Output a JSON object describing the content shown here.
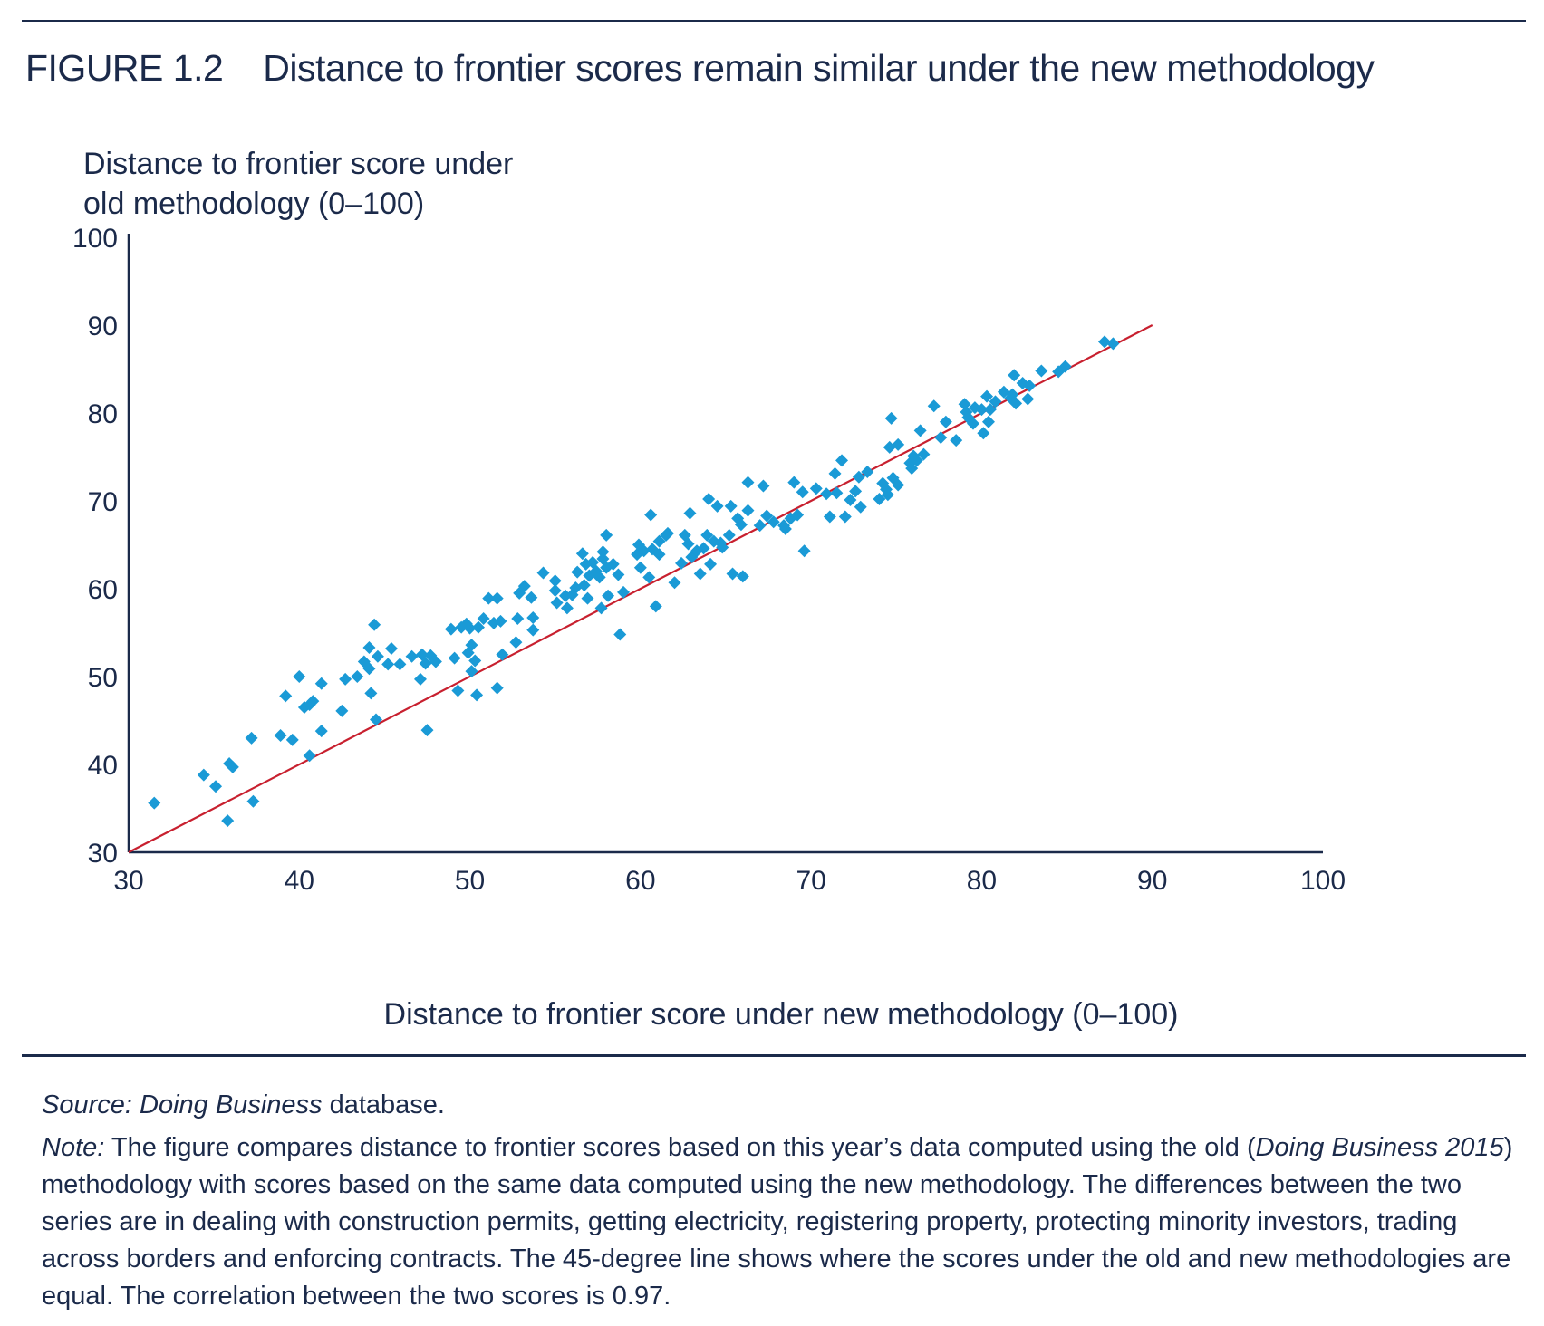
{
  "figure": {
    "label": "FIGURE 1.2",
    "title": "Distance to frontier scores remain similar under the new methodology"
  },
  "source": {
    "label": "Source:",
    "name": "Doing Business",
    "suffix": "database."
  },
  "note": {
    "label": "Note:",
    "p1": "The figure compares distance to frontier scores based on this year’s data computed using the old (",
    "italic": "Doing Business 2015",
    "p2": ") methodology with scores based on the same data computed using the new methodology. The differences between the two series are in dealing with construction permits, getting electricity, registering property, protecting minority investors, trading across borders and enforcing contracts. The 45-degree line shows where the scores under the old and new methodologies are equal. The correlation between the two scores is 0.97."
  },
  "colors": {
    "marker": "#1a9ad6",
    "line": "#c8202f",
    "axis": "#1b2a4a",
    "text": "#1b2a4a"
  },
  "chart_data": {
    "type": "scatter",
    "ylabel_line1": "Distance to frontier score under",
    "ylabel_line2": "old methodology (0–100)",
    "xlabel": "Distance to frontier score under new methodology (0–100)",
    "xlim": [
      30,
      100
    ],
    "ylim": [
      30,
      100
    ],
    "xticks": [
      30,
      40,
      50,
      60,
      70,
      80,
      90,
      100
    ],
    "yticks": [
      30,
      40,
      50,
      60,
      70,
      80,
      90,
      100
    ],
    "grid": false,
    "marker": "diamond",
    "reference_line": {
      "from": [
        30,
        30
      ],
      "to": [
        90,
        90
      ]
    },
    "points": [
      [
        31.5,
        35.6
      ],
      [
        34.4,
        38.8
      ],
      [
        35.1,
        37.5
      ],
      [
        35.9,
        40.1
      ],
      [
        36.1,
        39.7
      ],
      [
        35.8,
        33.6
      ],
      [
        37.3,
        35.8
      ],
      [
        37.2,
        43.0
      ],
      [
        38.9,
        43.3
      ],
      [
        39.6,
        42.8
      ],
      [
        39.2,
        47.8
      ],
      [
        40.0,
        50.0
      ],
      [
        40.3,
        46.5
      ],
      [
        40.8,
        47.2
      ],
      [
        40.6,
        46.8
      ],
      [
        40.6,
        41.0
      ],
      [
        41.3,
        43.8
      ],
      [
        41.3,
        49.2
      ],
      [
        42.5,
        46.1
      ],
      [
        42.7,
        49.7
      ],
      [
        43.4,
        50.0
      ],
      [
        43.8,
        51.7
      ],
      [
        44.1,
        53.3
      ],
      [
        44.1,
        50.9
      ],
      [
        44.2,
        48.1
      ],
      [
        44.4,
        55.9
      ],
      [
        44.6,
        52.3
      ],
      [
        44.5,
        45.1
      ],
      [
        45.2,
        51.4
      ],
      [
        45.4,
        53.2
      ],
      [
        45.9,
        51.4
      ],
      [
        46.6,
        52.3
      ],
      [
        47.1,
        49.7
      ],
      [
        47.4,
        51.5
      ],
      [
        47.2,
        52.5
      ],
      [
        47.7,
        52.4
      ],
      [
        48.0,
        51.7
      ],
      [
        47.5,
        43.9
      ],
      [
        48.9,
        55.4
      ],
      [
        49.1,
        52.1
      ],
      [
        49.3,
        48.4
      ],
      [
        49.5,
        55.6
      ],
      [
        49.8,
        56.0
      ],
      [
        50.0,
        55.5
      ],
      [
        50.1,
        53.6
      ],
      [
        49.9,
        52.7
      ],
      [
        50.5,
        55.6
      ],
      [
        50.3,
        51.8
      ],
      [
        50.1,
        50.6
      ],
      [
        50.4,
        47.9
      ],
      [
        50.8,
        56.6
      ],
      [
        51.1,
        58.9
      ],
      [
        51.4,
        56.1
      ],
      [
        51.6,
        58.9
      ],
      [
        51.8,
        56.3
      ],
      [
        51.6,
        48.7
      ],
      [
        51.9,
        52.5
      ],
      [
        52.7,
        53.9
      ],
      [
        52.8,
        56.6
      ],
      [
        52.9,
        59.5
      ],
      [
        53.2,
        60.3
      ],
      [
        53.6,
        59.0
      ],
      [
        53.7,
        56.7
      ],
      [
        53.7,
        55.3
      ],
      [
        54.3,
        61.8
      ],
      [
        55.0,
        59.8
      ],
      [
        55.0,
        60.9
      ],
      [
        55.1,
        58.4
      ],
      [
        55.6,
        59.2
      ],
      [
        55.7,
        57.8
      ],
      [
        56.0,
        59.3
      ],
      [
        56.2,
        60.1
      ],
      [
        56.3,
        61.9
      ],
      [
        56.6,
        64.0
      ],
      [
        56.8,
        62.8
      ],
      [
        56.7,
        60.4
      ],
      [
        56.9,
        58.9
      ],
      [
        57.2,
        63.0
      ],
      [
        57.0,
        61.5
      ],
      [
        57.4,
        62.0
      ],
      [
        57.6,
        61.3
      ],
      [
        57.8,
        63.4
      ],
      [
        57.8,
        64.2
      ],
      [
        57.7,
        57.8
      ],
      [
        58.0,
        66.1
      ],
      [
        58.0,
        62.4
      ],
      [
        58.1,
        59.2
      ],
      [
        58.4,
        62.8
      ],
      [
        58.8,
        54.8
      ],
      [
        58.7,
        61.6
      ],
      [
        59.0,
        59.6
      ],
      [
        59.8,
        63.9
      ],
      [
        59.9,
        65.0
      ],
      [
        60.0,
        62.4
      ],
      [
        60.2,
        64.3
      ],
      [
        60.5,
        61.3
      ],
      [
        60.7,
        64.5
      ],
      [
        60.6,
        68.4
      ],
      [
        60.9,
        58.0
      ],
      [
        61.1,
        63.9
      ],
      [
        61.1,
        65.4
      ],
      [
        61.6,
        66.3
      ],
      [
        61.5,
        66.1
      ],
      [
        62.0,
        60.7
      ],
      [
        62.4,
        62.9
      ],
      [
        62.6,
        66.1
      ],
      [
        62.9,
        68.6
      ],
      [
        62.8,
        65.1
      ],
      [
        63.0,
        63.6
      ],
      [
        63.3,
        64.3
      ],
      [
        63.5,
        61.7
      ],
      [
        63.7,
        64.6
      ],
      [
        63.9,
        66.1
      ],
      [
        64.0,
        70.2
      ],
      [
        64.1,
        62.8
      ],
      [
        64.3,
        65.4
      ],
      [
        64.5,
        69.4
      ],
      [
        64.7,
        65.2
      ],
      [
        64.8,
        64.7
      ],
      [
        65.2,
        66.1
      ],
      [
        65.3,
        69.4
      ],
      [
        65.4,
        61.7
      ],
      [
        65.7,
        68.0
      ],
      [
        65.9,
        67.3
      ],
      [
        66.0,
        61.4
      ],
      [
        66.3,
        72.1
      ],
      [
        66.3,
        68.9
      ],
      [
        67.0,
        67.2
      ],
      [
        67.2,
        71.7
      ],
      [
        67.4,
        68.3
      ],
      [
        67.8,
        67.6
      ],
      [
        68.4,
        67.2
      ],
      [
        68.5,
        66.8
      ],
      [
        68.8,
        68.0
      ],
      [
        69.0,
        72.1
      ],
      [
        69.2,
        68.4
      ],
      [
        69.5,
        71.0
      ],
      [
        69.6,
        64.3
      ],
      [
        70.3,
        71.4
      ],
      [
        70.9,
        70.8
      ],
      [
        71.1,
        68.2
      ],
      [
        71.5,
        70.9
      ],
      [
        71.4,
        73.1
      ],
      [
        71.8,
        74.6
      ],
      [
        72.0,
        68.2
      ],
      [
        72.3,
        70.1
      ],
      [
        72.6,
        71.1
      ],
      [
        72.8,
        72.7
      ],
      [
        72.9,
        69.3
      ],
      [
        73.3,
        73.3
      ],
      [
        74.0,
        70.2
      ],
      [
        74.2,
        72.0
      ],
      [
        74.4,
        71.3
      ],
      [
        74.6,
        76.1
      ],
      [
        74.5,
        70.7
      ],
      [
        74.7,
        79.4
      ],
      [
        74.8,
        72.6
      ],
      [
        75.1,
        71.8
      ],
      [
        75.1,
        76.4
      ],
      [
        75.8,
        74.3
      ],
      [
        75.9,
        73.7
      ],
      [
        76.0,
        75.1
      ],
      [
        76.2,
        74.6
      ],
      [
        76.4,
        78.0
      ],
      [
        76.6,
        75.3
      ],
      [
        77.2,
        80.8
      ],
      [
        77.6,
        77.2
      ],
      [
        77.9,
        79.0
      ],
      [
        78.5,
        76.9
      ],
      [
        79.0,
        81.0
      ],
      [
        79.1,
        80.1
      ],
      [
        79.2,
        79.5
      ],
      [
        79.5,
        78.8
      ],
      [
        79.6,
        80.6
      ],
      [
        80.0,
        80.4
      ],
      [
        80.1,
        77.7
      ],
      [
        80.4,
        79.0
      ],
      [
        80.3,
        81.9
      ],
      [
        80.5,
        80.4
      ],
      [
        80.8,
        81.3
      ],
      [
        81.3,
        82.4
      ],
      [
        81.7,
        81.7
      ],
      [
        81.9,
        84.3
      ],
      [
        81.8,
        82.1
      ],
      [
        82.0,
        81.1
      ],
      [
        82.4,
        83.4
      ],
      [
        82.7,
        81.6
      ],
      [
        82.8,
        83.1
      ],
      [
        83.5,
        84.8
      ],
      [
        84.5,
        84.7
      ],
      [
        84.9,
        85.3
      ],
      [
        87.2,
        88.1
      ],
      [
        87.7,
        87.9
      ]
    ]
  }
}
